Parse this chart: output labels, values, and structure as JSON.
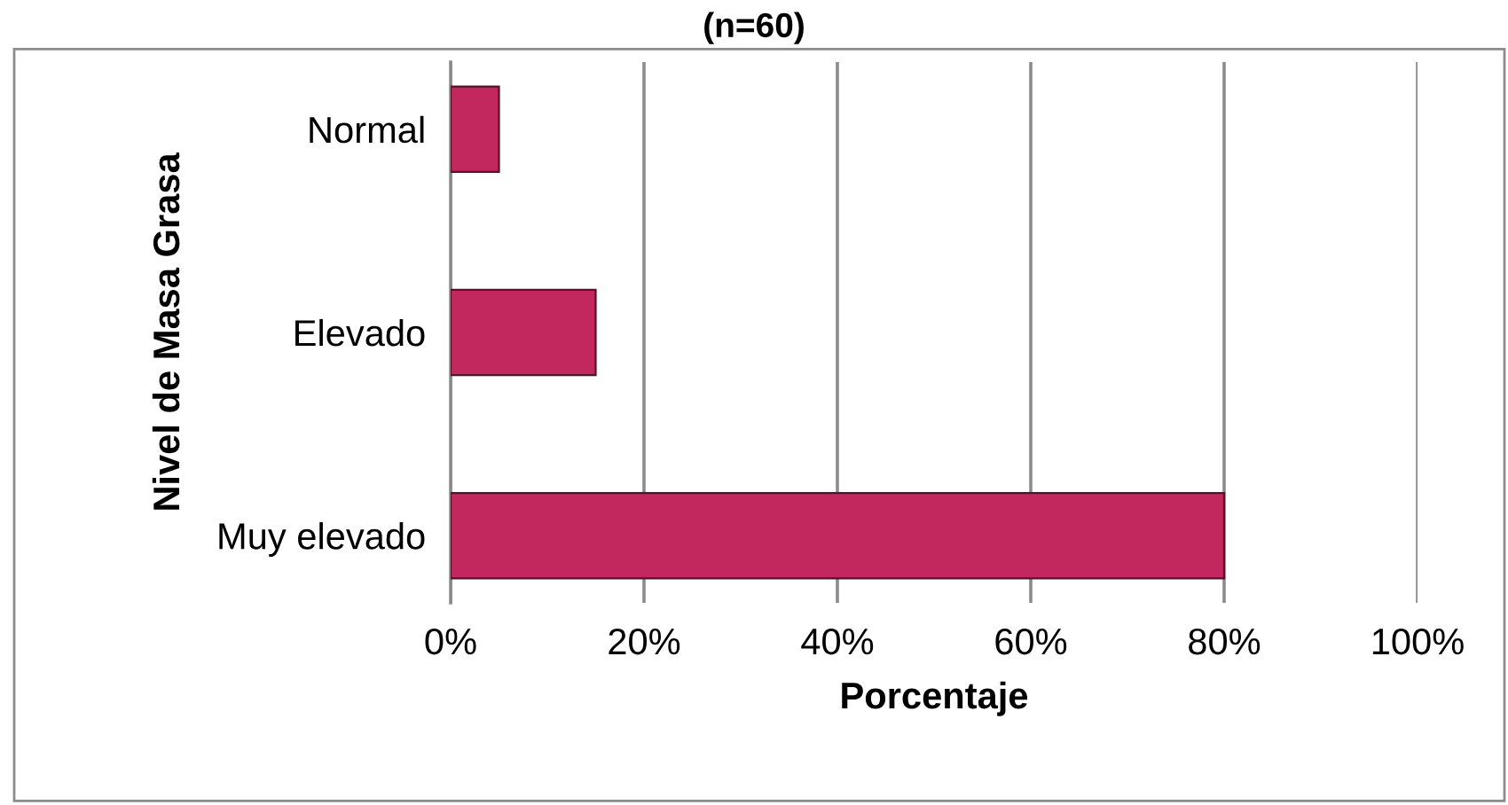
{
  "chart_data": {
    "type": "bar",
    "orientation": "horizontal",
    "title": "(n=60)",
    "categories": [
      "Normal",
      "Elevado",
      "Muy elevado"
    ],
    "values": [
      5,
      15,
      80
    ],
    "color": "#c2285e",
    "xlim": [
      0,
      100
    ],
    "xticks": [
      {
        "value": 0,
        "label": "0%"
      },
      {
        "value": 20,
        "label": "20%"
      },
      {
        "value": 40,
        "label": "40%"
      },
      {
        "value": 60,
        "label": "60%"
      },
      {
        "value": 80,
        "label": "80%"
      },
      {
        "value": 100,
        "label": "100%"
      }
    ],
    "xlabel": "Porcentaje",
    "ylabel": "Nivel de Masa Grasa",
    "grid": "x"
  }
}
